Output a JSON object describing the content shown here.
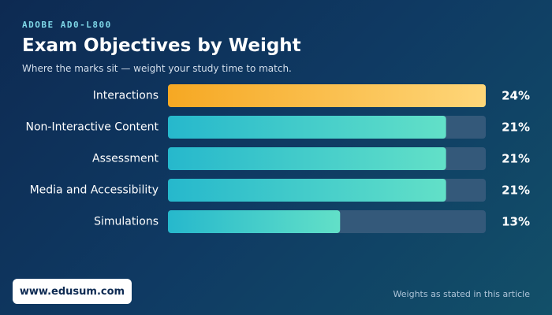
{
  "header": {
    "eyebrow": "ADOBE AD0-L800",
    "title": "Exam Objectives by Weight",
    "subtitle": "Where the marks sit — weight your study time to match."
  },
  "footer": {
    "site": "www.edusum.com",
    "note": "Weights as stated in this article"
  },
  "colors": {
    "highlight_start": "#f6a823",
    "highlight_end": "#fed679",
    "bar_start": "#26b8cc",
    "bar_end": "#62e0c8",
    "track": "#34597a"
  },
  "chart_data": {
    "type": "bar",
    "orientation": "horizontal",
    "categories": [
      "Interactions",
      "Non-Interactive Content",
      "Assessment",
      "Media and Accessibility",
      "Simulations"
    ],
    "values": [
      24,
      21,
      21,
      21,
      13
    ],
    "value_labels": [
      "24%",
      "21%",
      "21%",
      "21%",
      "13%"
    ],
    "unit": "%",
    "xlim": [
      0,
      24
    ],
    "highlight_index": 0,
    "grid": false,
    "legend": "none"
  }
}
